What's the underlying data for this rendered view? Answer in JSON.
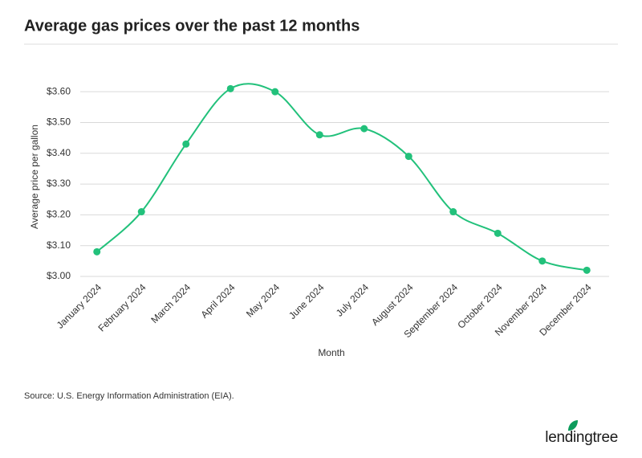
{
  "chart_data": {
    "type": "line",
    "title": "Average gas prices over the past 12 months",
    "x_label": "Month",
    "y_label": "Average price per gallon",
    "source": "Source: U.S. Energy Information Administration (EIA).",
    "brand": "lendingtree",
    "categories": [
      "January 2024",
      "February 2024",
      "March 2024",
      "April 2024",
      "May 2024",
      "June 2024",
      "July 2024",
      "August 2024",
      "September 2024",
      "October 2024",
      "November 2024",
      "December 2024"
    ],
    "values": [
      3.08,
      3.21,
      3.43,
      3.61,
      3.6,
      3.46,
      3.48,
      3.39,
      3.21,
      3.14,
      3.05,
      3.02
    ],
    "color": "#22c17b",
    "ylim": [
      3.0,
      3.65
    ],
    "yticks": [
      {
        "value": 3.0,
        "label": "$3.00"
      },
      {
        "value": 3.1,
        "label": "$3.10"
      },
      {
        "value": 3.2,
        "label": "$3.20"
      },
      {
        "value": 3.3,
        "label": "$3.30"
      },
      {
        "value": 3.4,
        "label": "$3.40"
      },
      {
        "value": 3.5,
        "label": "$3.50"
      },
      {
        "value": 3.6,
        "label": "$3.60"
      }
    ],
    "grid": true
  }
}
